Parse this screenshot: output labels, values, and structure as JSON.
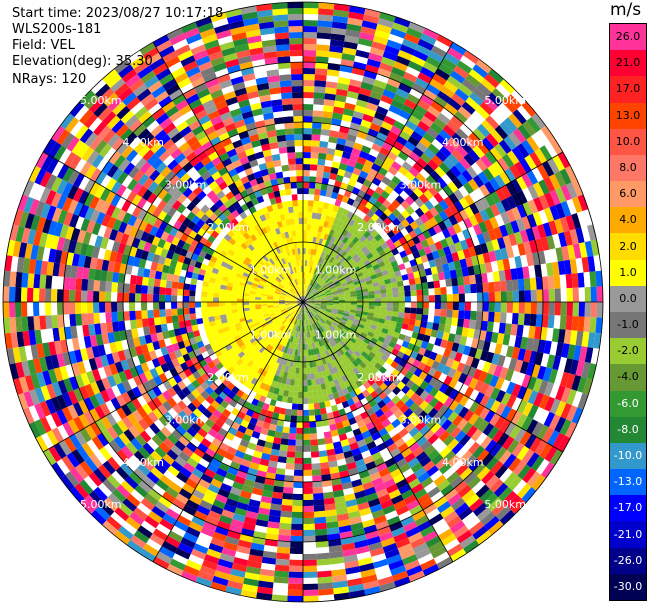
{
  "header": {
    "start_time": "Start time: 2023/08/27 10:17:18",
    "instrument": "WLS200s-181",
    "field": "Field: VEL",
    "elevation": "Elevation(deg): 35.30",
    "nrays": "NRays: 120"
  },
  "ring_labels": [
    "1.00km",
    "2.00km",
    "3.00km",
    "4.00km",
    "5.00km"
  ],
  "colorbar": {
    "unit": "m/s",
    "ticks": [
      "26.0",
      "21.0",
      "17.0",
      "13.0",
      "10.0",
      "8.0",
      "6.0",
      "4.0",
      "2.0",
      "1.0",
      "0.0",
      "-1.0",
      "-2.0",
      "-4.0",
      "-6.0",
      "-8.0",
      "-10.0",
      "-13.0",
      "-17.0",
      "-21.0",
      "-26.0",
      "-30.0"
    ],
    "colors": [
      "#ff3399",
      "#ff0033",
      "#ff2222",
      "#ff4400",
      "#ff5544",
      "#ff7766",
      "#ff9966",
      "#ffaa00",
      "#ffdd00",
      "#ffff00",
      "#999999",
      "#777777",
      "#99cc33",
      "#669933",
      "#339933",
      "#228833",
      "#3399cc",
      "#0066ff",
      "#0000ff",
      "#0000cc",
      "#000088",
      "#000055"
    ],
    "label_colors": [
      "#000000",
      "#000000",
      "#000000",
      "#000000",
      "#000000",
      "#000000",
      "#000000",
      "#000000",
      "#000000",
      "#000000",
      "#000000",
      "#000000",
      "#000000",
      "#000000",
      "#ffffff",
      "#ffffff",
      "#ffffff",
      "#ffffff",
      "#ffffff",
      "#ffffff",
      "#ffffff",
      "#ffffff"
    ]
  }
}
